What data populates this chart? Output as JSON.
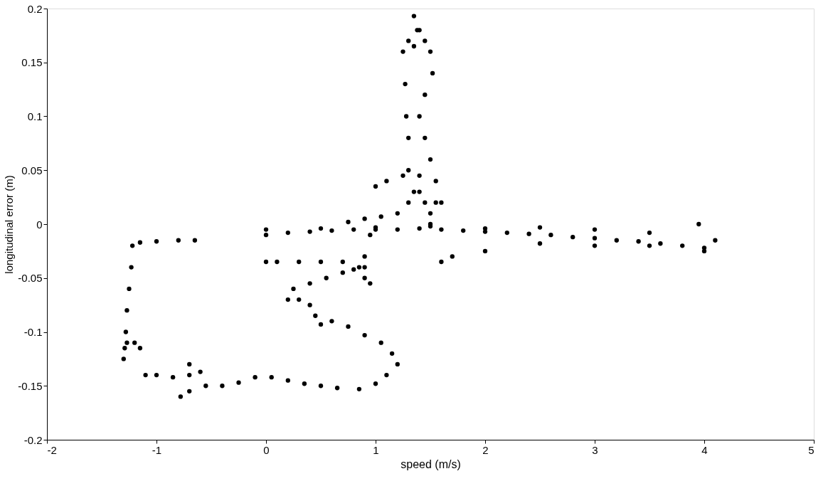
{
  "chart_data": {
    "type": "scatter",
    "xlabel": "speed (m/s)",
    "ylabel": "longitudinal error (m)",
    "xlim": [
      -2,
      5
    ],
    "xticks": [
      -2,
      -1,
      0,
      1,
      2,
      3,
      4,
      5
    ],
    "ylim": [
      -0.2,
      0.2
    ],
    "yticks": [
      -0.2,
      -0.15,
      -0.1,
      -0.05,
      0,
      0.05,
      0.1,
      0.15,
      0.2
    ],
    "grid": false,
    "marker": "circle",
    "series": [
      {
        "color": "#000000",
        "x": [
          -0.65,
          -0.8,
          -1.0,
          -1.15,
          -1.22,
          -1.23,
          -1.25,
          -1.27,
          -1.28,
          -1.29,
          -1.3,
          -1.27,
          -1.2,
          -1.15,
          -1.1,
          -1.0,
          -0.85,
          -0.7,
          -0.6,
          -0.7,
          -0.78,
          -0.7,
          -0.55,
          -0.4,
          -0.25,
          -0.1,
          0.05,
          0.2,
          0.35,
          0.5,
          0.65,
          0.85,
          1.0,
          1.1,
          1.2,
          1.15,
          1.05,
          0.9,
          0.75,
          0.6,
          0.5,
          0.45,
          0.4,
          0.3,
          0.2,
          0.25,
          0.4,
          0.55,
          0.7,
          0.8,
          0.9,
          0.9,
          0.95,
          0.85,
          0.7,
          0.5,
          0.3,
          0.1,
          0.0,
          0.0,
          0.2,
          0.4,
          0.6,
          0.8,
          1.0,
          1.2,
          1.4,
          1.6,
          1.8,
          2.0,
          2.2,
          2.4,
          2.6,
          2.8,
          3.0,
          3.2,
          3.4,
          3.6,
          3.8,
          4.0,
          4.1,
          3.95,
          3.5,
          3.0,
          2.5,
          2.0,
          1.5,
          1.0,
          0.5,
          0.0,
          1.7,
          1.6,
          2.0,
          2.5,
          3.0,
          3.5,
          4.0,
          0.95,
          0.9,
          0.75,
          0.9,
          1.05,
          1.2,
          1.3,
          1.4,
          1.4,
          1.25,
          1.1,
          1.0,
          1.45,
          1.55,
          1.5,
          1.5,
          1.35,
          1.3,
          1.3,
          1.28,
          1.27,
          1.25,
          1.3,
          1.35,
          1.38,
          1.35,
          1.4,
          1.45,
          1.5,
          1.52,
          1.45,
          1.4,
          1.45,
          1.5,
          1.55,
          1.6
        ],
        "values": [
          -0.015,
          -0.015,
          -0.016,
          -0.017,
          -0.02,
          -0.04,
          -0.06,
          -0.08,
          -0.1,
          -0.115,
          -0.125,
          -0.11,
          -0.11,
          -0.115,
          -0.14,
          -0.14,
          -0.142,
          -0.14,
          -0.137,
          -0.13,
          -0.16,
          -0.155,
          -0.15,
          -0.15,
          -0.147,
          -0.142,
          -0.142,
          -0.145,
          -0.148,
          -0.15,
          -0.152,
          -0.153,
          -0.148,
          -0.14,
          -0.13,
          -0.12,
          -0.11,
          -0.103,
          -0.095,
          -0.09,
          -0.093,
          -0.085,
          -0.075,
          -0.07,
          -0.07,
          -0.06,
          -0.055,
          -0.05,
          -0.045,
          -0.042,
          -0.04,
          -0.05,
          -0.055,
          -0.04,
          -0.035,
          -0.035,
          -0.035,
          -0.035,
          -0.035,
          -0.01,
          -0.008,
          -0.007,
          -0.006,
          -0.005,
          -0.005,
          -0.005,
          -0.004,
          -0.005,
          -0.006,
          -0.007,
          -0.008,
          -0.009,
          -0.01,
          -0.012,
          -0.013,
          -0.015,
          -0.016,
          -0.018,
          -0.02,
          -0.022,
          -0.015,
          0.0,
          -0.008,
          -0.005,
          -0.003,
          -0.004,
          -0.002,
          -0.003,
          -0.004,
          -0.005,
          -0.03,
          -0.035,
          -0.025,
          -0.018,
          -0.02,
          -0.02,
          -0.025,
          -0.01,
          -0.03,
          0.002,
          0.005,
          0.007,
          0.01,
          0.02,
          0.03,
          0.045,
          0.045,
          0.04,
          0.035,
          0.02,
          0.02,
          0.01,
          0.0,
          0.03,
          0.05,
          0.08,
          0.1,
          0.13,
          0.16,
          0.17,
          0.165,
          0.18,
          0.193,
          0.18,
          0.17,
          0.16,
          0.14,
          0.12,
          0.1,
          0.08,
          0.06,
          0.04,
          0.02
        ]
      }
    ]
  }
}
